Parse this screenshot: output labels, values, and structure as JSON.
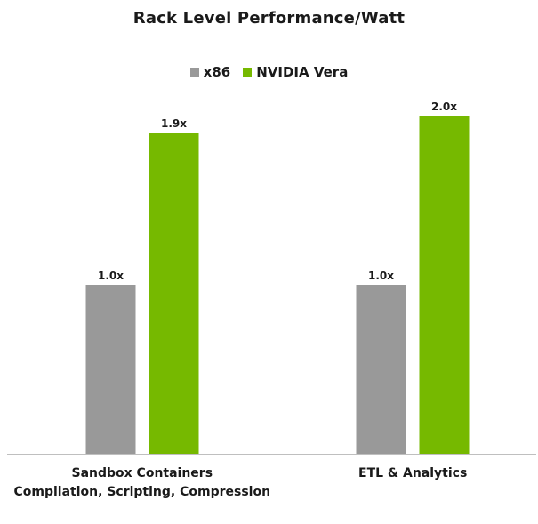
{
  "chart_data": {
    "type": "bar",
    "title": "Rack Level Performance/Watt",
    "categories": [
      [
        "Sandbox Containers",
        "Compilation, Scripting, Compression"
      ],
      [
        "ETL & Analytics"
      ]
    ],
    "series": [
      {
        "name": "x86",
        "values": [
          1.0,
          1.0
        ],
        "labels": [
          "1.0x",
          "1.0x"
        ],
        "color": "#999999"
      },
      {
        "name": "NVIDIA Vera",
        "values": [
          1.9,
          2.0
        ],
        "labels": [
          "1.9x",
          "2.0x"
        ],
        "color": "#76b900"
      }
    ],
    "xlabel": "",
    "ylabel": "",
    "ylim": [
      0,
      2.0
    ],
    "grid": false,
    "legend_position": "top-center",
    "axis_color": "#bfbfbf"
  }
}
